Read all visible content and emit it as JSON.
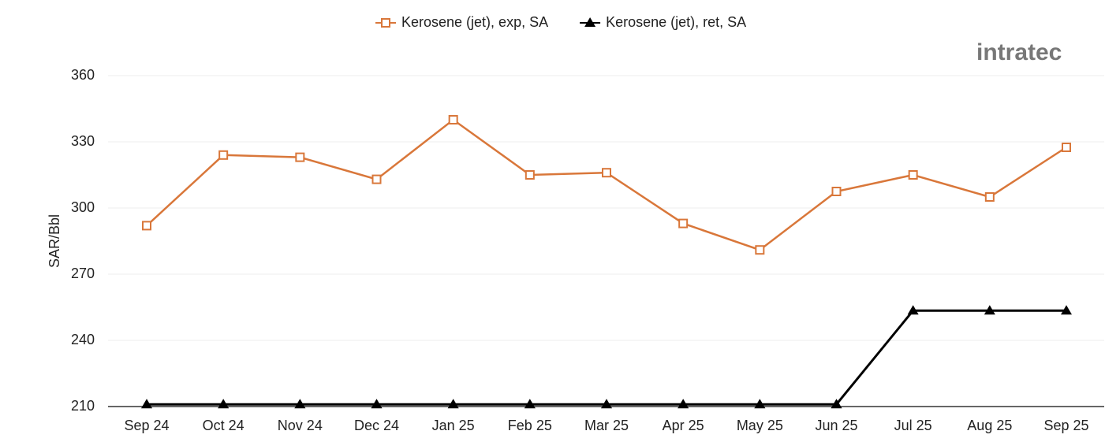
{
  "logo": "intratec",
  "chart_data": {
    "type": "line",
    "y_label": "SAR/Bbl",
    "categories": [
      "Sep 24",
      "Oct 24",
      "Nov 24",
      "Dec 24",
      "Jan 25",
      "Feb 25",
      "Mar 25",
      "Apr 25",
      "May 25",
      "Jun 25",
      "Jul 25",
      "Aug 25",
      "Sep 25"
    ],
    "series": [
      {
        "name": "Kerosene (jet), exp, SA",
        "color": "#d9773a",
        "marker": "square",
        "values": [
          292,
          324,
          323,
          313,
          340,
          315,
          316,
          293,
          281,
          307.5,
          315,
          305,
          327.5
        ]
      },
      {
        "name": "Kerosene (jet), ret, SA",
        "color": "#000000",
        "marker": "triangle",
        "values": [
          211,
          211,
          211,
          211,
          211,
          211,
          211,
          211,
          211,
          211,
          253.5,
          253.5,
          253.5
        ]
      }
    ],
    "ylim": [
      210,
      360
    ],
    "yticks": [
      210,
      240,
      270,
      300,
      330,
      360
    ],
    "grid": true
  }
}
